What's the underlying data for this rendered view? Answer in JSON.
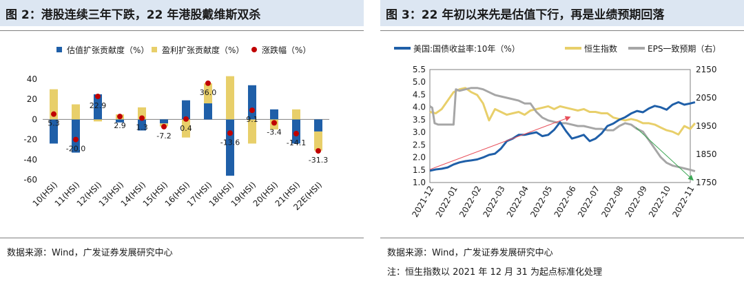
{
  "left": {
    "title": "图 2：港股连续三年下跌，22 年港股戴维斯双杀",
    "source": "数据来源：Wind，广发证券发展研究中心"
  },
  "right": {
    "title": "图 3：22 年初以来先是估值下行，再是业绩预期回落",
    "source": "数据来源：Wind，广发证券发展研究中心",
    "note": "注：恒生指数以 2021 年 12 月 31 为起点标准化处理"
  },
  "chart_data": [
    {
      "type": "bar",
      "categories": [
        "10(HSI)",
        "11(HSI)",
        "12(HSI)",
        "13(HSI)",
        "14(HSI)",
        "15(HSI)",
        "16(HSI)",
        "17(HSI)",
        "18(HSI)",
        "19(HSI)",
        "20(HSI)",
        "21(HSI)",
        "22E(HSI)"
      ],
      "series": [
        {
          "name": "估值扩张贡献度（%）",
          "kind": "bar",
          "color": "#1f5fa8",
          "values": [
            -24,
            -33,
            25,
            -3,
            -11,
            -4,
            19,
            16,
            -56,
            34,
            10,
            -24,
            -12
          ]
        },
        {
          "name": "盈利扩张贡献度（%）",
          "kind": "bar",
          "color": "#e8cf6a",
          "values": [
            30,
            15,
            -2,
            5,
            12,
            -3,
            -18,
            20,
            43,
            -24,
            -10,
            10,
            -19
          ]
        },
        {
          "name": "涨跌幅（%）",
          "kind": "dot",
          "color": "#c00000",
          "values": [
            5.3,
            -20.0,
            22.9,
            2.9,
            1.3,
            -7.2,
            0.4,
            36.0,
            -13.6,
            9.1,
            -3.4,
            -14.1,
            -31.3
          ],
          "labels": [
            "5.3",
            "-20.0",
            "22.9",
            "2.9",
            "1.3",
            "-7.2",
            "0.4",
            "36.0",
            "-13.6",
            "9.1",
            "-3.4",
            "-14.1",
            "-31.3"
          ]
        }
      ],
      "ylim": [
        -60,
        40
      ],
      "yticks": [
        -60,
        -40,
        -20,
        0,
        20,
        40
      ]
    },
    {
      "type": "line",
      "x_ticks": [
        "2021-12",
        "2022-01",
        "2022-02",
        "2022-03",
        "2022-04",
        "2022-05",
        "2022-06",
        "2022-07",
        "2022-08",
        "2022-09",
        "2022-10",
        "2022-11"
      ],
      "y_left": {
        "ylim": [
          1.0,
          5.5
        ],
        "ticks": [
          "1.0",
          "1.5",
          "2.0",
          "2.5",
          "3.0",
          "3.5",
          "4.0",
          "4.5",
          "5.0",
          "5.5"
        ]
      },
      "y_right": {
        "ylim": [
          1750,
          2150
        ],
        "ticks": [
          "1750",
          "1850",
          "1950",
          "2050",
          "2150"
        ]
      },
      "series": [
        {
          "name": "美国:国债收益率:10年（%）",
          "axis": "left",
          "color": "#1f5fa8",
          "x": [
            0,
            0.25,
            0.5,
            0.75,
            1,
            1.25,
            1.5,
            1.75,
            2,
            2.25,
            2.5,
            2.75,
            3,
            3.25,
            3.5,
            3.75,
            4,
            4.25,
            4.5,
            4.75,
            5,
            5.25,
            5.5,
            5.75,
            6,
            6.25,
            6.5,
            6.75,
            7,
            7.25,
            7.5,
            7.75,
            8,
            8.25,
            8.5,
            8.75,
            9,
            9.25,
            9.5,
            9.75,
            10,
            10.25,
            10.5,
            10.75,
            11,
            11.2
          ],
          "y": [
            1.47,
            1.52,
            1.55,
            1.6,
            1.72,
            1.8,
            1.85,
            1.88,
            1.92,
            2.0,
            2.1,
            2.15,
            2.35,
            2.65,
            2.75,
            2.9,
            2.9,
            2.95,
            3.0,
            2.85,
            2.9,
            3.1,
            3.4,
            3.05,
            2.75,
            2.82,
            2.9,
            2.65,
            2.75,
            2.95,
            3.25,
            3.35,
            3.5,
            3.6,
            3.75,
            3.85,
            3.8,
            3.95,
            4.05,
            4.0,
            3.9,
            4.1,
            4.2,
            4.1,
            4.15,
            4.2
          ]
        },
        {
          "name": "恒生指数",
          "axis": "right",
          "color": "#e8cf6a",
          "x": [
            0,
            0.25,
            0.5,
            0.75,
            1,
            1.25,
            1.5,
            1.75,
            2,
            2.25,
            2.5,
            2.75,
            3,
            3.25,
            3.5,
            3.75,
            4,
            4.25,
            4.5,
            4.75,
            5,
            5.25,
            5.5,
            5.75,
            6,
            6.25,
            6.5,
            6.75,
            7,
            7.25,
            7.5,
            7.75,
            8,
            8.25,
            8.5,
            8.75,
            9,
            9.25,
            9.5,
            9.75,
            10,
            10.25,
            10.5,
            10.75,
            11,
            11.2
          ],
          "y": [
            2000,
            1995,
            2010,
            2040,
            2070,
            2080,
            2085,
            2070,
            2060,
            2030,
            1970,
            2010,
            2000,
            1990,
            1995,
            2000,
            1990,
            2005,
            2010,
            2015,
            2020,
            2010,
            2020,
            2015,
            2010,
            2005,
            2010,
            2000,
            2000,
            1995,
            1995,
            1980,
            1975,
            1970,
            1975,
            1970,
            1960,
            1960,
            1955,
            1945,
            1935,
            1930,
            1920,
            1950,
            1940,
            1960
          ]
        },
        {
          "name": "EPS一致预期（右）",
          "axis": "right",
          "color": "#a6a6a6",
          "x": [
            0,
            0.1,
            0.2,
            0.35,
            0.5,
            0.75,
            1,
            1.1,
            1.25,
            1.5,
            1.75,
            2,
            2.25,
            2.5,
            2.75,
            3,
            3.25,
            3.5,
            3.75,
            4,
            4.25,
            4.5,
            4.75,
            5,
            5.25,
            5.5,
            5.75,
            6,
            6.25,
            6.5,
            6.75,
            7,
            7.25,
            7.5,
            7.75,
            8,
            8.25,
            8.5,
            8.75,
            9,
            9.25,
            9.5,
            9.75,
            10,
            10.25,
            10.5,
            10.75,
            11,
            11.2
          ],
          "y": [
            2020,
            2015,
            1960,
            1955,
            1955,
            1955,
            1955,
            2080,
            2075,
            2080,
            2085,
            2085,
            2080,
            2070,
            2060,
            2055,
            2050,
            2045,
            2040,
            2030,
            2030,
            2000,
            1980,
            1970,
            1965,
            1960,
            1960,
            1955,
            1950,
            1950,
            1945,
            1940,
            1940,
            1935,
            1935,
            1950,
            1960,
            1955,
            1940,
            1930,
            1900,
            1870,
            1840,
            1820,
            1810,
            1805,
            1800,
            1795,
            1790
          ]
        }
      ],
      "arrows": [
        {
          "color": "#e8505b",
          "from": [
            0,
            1.52
          ],
          "to": [
            5.9,
            3.6
          ],
          "axis": "left"
        },
        {
          "color": "#3aa653",
          "from": [
            8.7,
            1945
          ],
          "to": [
            11.1,
            1760
          ],
          "axis": "right"
        }
      ]
    }
  ]
}
